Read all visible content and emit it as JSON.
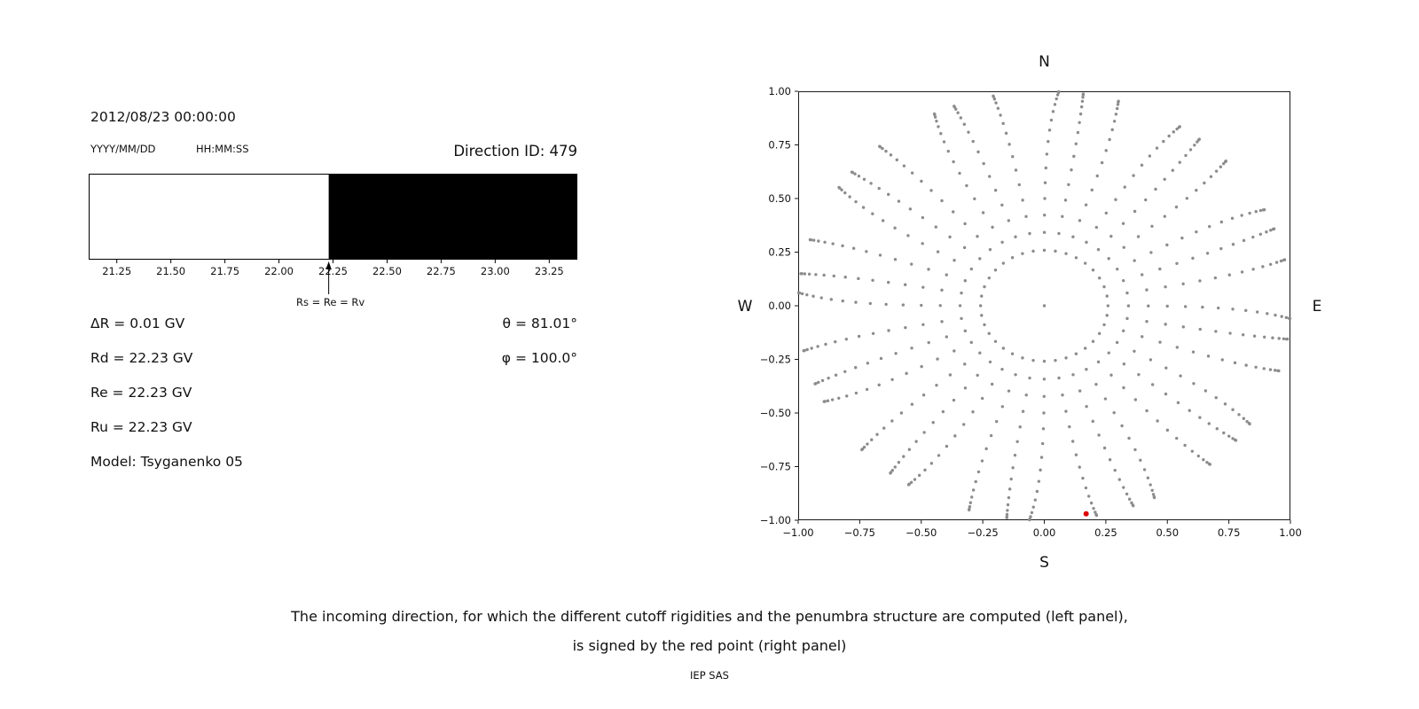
{
  "header": {
    "datetime": "2012/08/23 00:00:00",
    "date_format_label": "YYYY/MM/DD",
    "time_format_label": "HH:MM:SS",
    "direction_id": "Direction ID: 479"
  },
  "rigidity_info": {
    "delta_r": "ΔR = 0.01 GV",
    "rd": "Rd = 22.23 GV",
    "re": "Re = 22.23 GV",
    "ru": "Ru = 22.23 GV",
    "model": "Model: Tsyganenko 05",
    "theta": "θ = 81.01°",
    "phi": "φ = 100.0°"
  },
  "caption": {
    "line1": "The incoming direction, for which the different cutoff rigidities and the penumbra structure are computed (left panel),",
    "line2": "is signed by the red point (right panel)",
    "credit": "IEP SAS"
  },
  "chart_data": [
    {
      "id": "penumbra",
      "type": "area",
      "xlim": [
        21.12,
        23.38
      ],
      "x_ticks": [
        21.25,
        21.5,
        21.75,
        22.0,
        22.25,
        22.5,
        22.75,
        23.0,
        23.25
      ],
      "x_tick_labels": [
        "21.25",
        "21.50",
        "21.75",
        "22.00",
        "22.25",
        "22.50",
        "22.75",
        "23.00",
        "23.25"
      ],
      "regions": [
        {
          "from": 21.12,
          "to": 22.23,
          "color": "#ffffff"
        },
        {
          "from": 22.23,
          "to": 23.38,
          "color": "#000000"
        }
      ],
      "annotation": {
        "x": 22.23,
        "label": "Rs = Re = Rv"
      },
      "border_color": "#000000"
    },
    {
      "id": "direction-map",
      "type": "scatter",
      "xlim": [
        -1.0,
        1.0
      ],
      "ylim": [
        -1.0,
        1.0
      ],
      "x_ticks": [
        -1.0,
        -0.75,
        -0.5,
        -0.25,
        0.0,
        0.25,
        0.5,
        0.75,
        1.0
      ],
      "x_tick_labels": [
        "−1.00",
        "−0.75",
        "−0.50",
        "−0.25",
        "0.00",
        "0.25",
        "0.50",
        "0.75",
        "1.00"
      ],
      "y_ticks": [
        -1.0,
        -0.75,
        -0.5,
        -0.25,
        0.0,
        0.25,
        0.5,
        0.75,
        1.0
      ],
      "y_tick_labels": [
        "−1.00",
        "−0.75",
        "−0.50",
        "−0.25",
        "0.00",
        "0.25",
        "0.50",
        "0.75",
        "1.00"
      ],
      "compass": {
        "top": "N",
        "bottom": "S",
        "left": "W",
        "right": "E"
      },
      "grid_dots": {
        "azimuth_start_deg": 0,
        "azimuth_step_deg": 10,
        "azimuth_count": 36,
        "zenith_start_deg": 15,
        "zenith_step_deg": 5,
        "zenith_end_deg": 90,
        "radius_rule": "sin(zenith)",
        "wiggle_amplitude_deg": 3.5
      },
      "center_dot": true,
      "dot_color": "#8c8c8c",
      "selected_direction": {
        "x": 0.17,
        "y": -0.97,
        "color": "#dd0000"
      },
      "border_color": "#1a1a1a"
    }
  ]
}
